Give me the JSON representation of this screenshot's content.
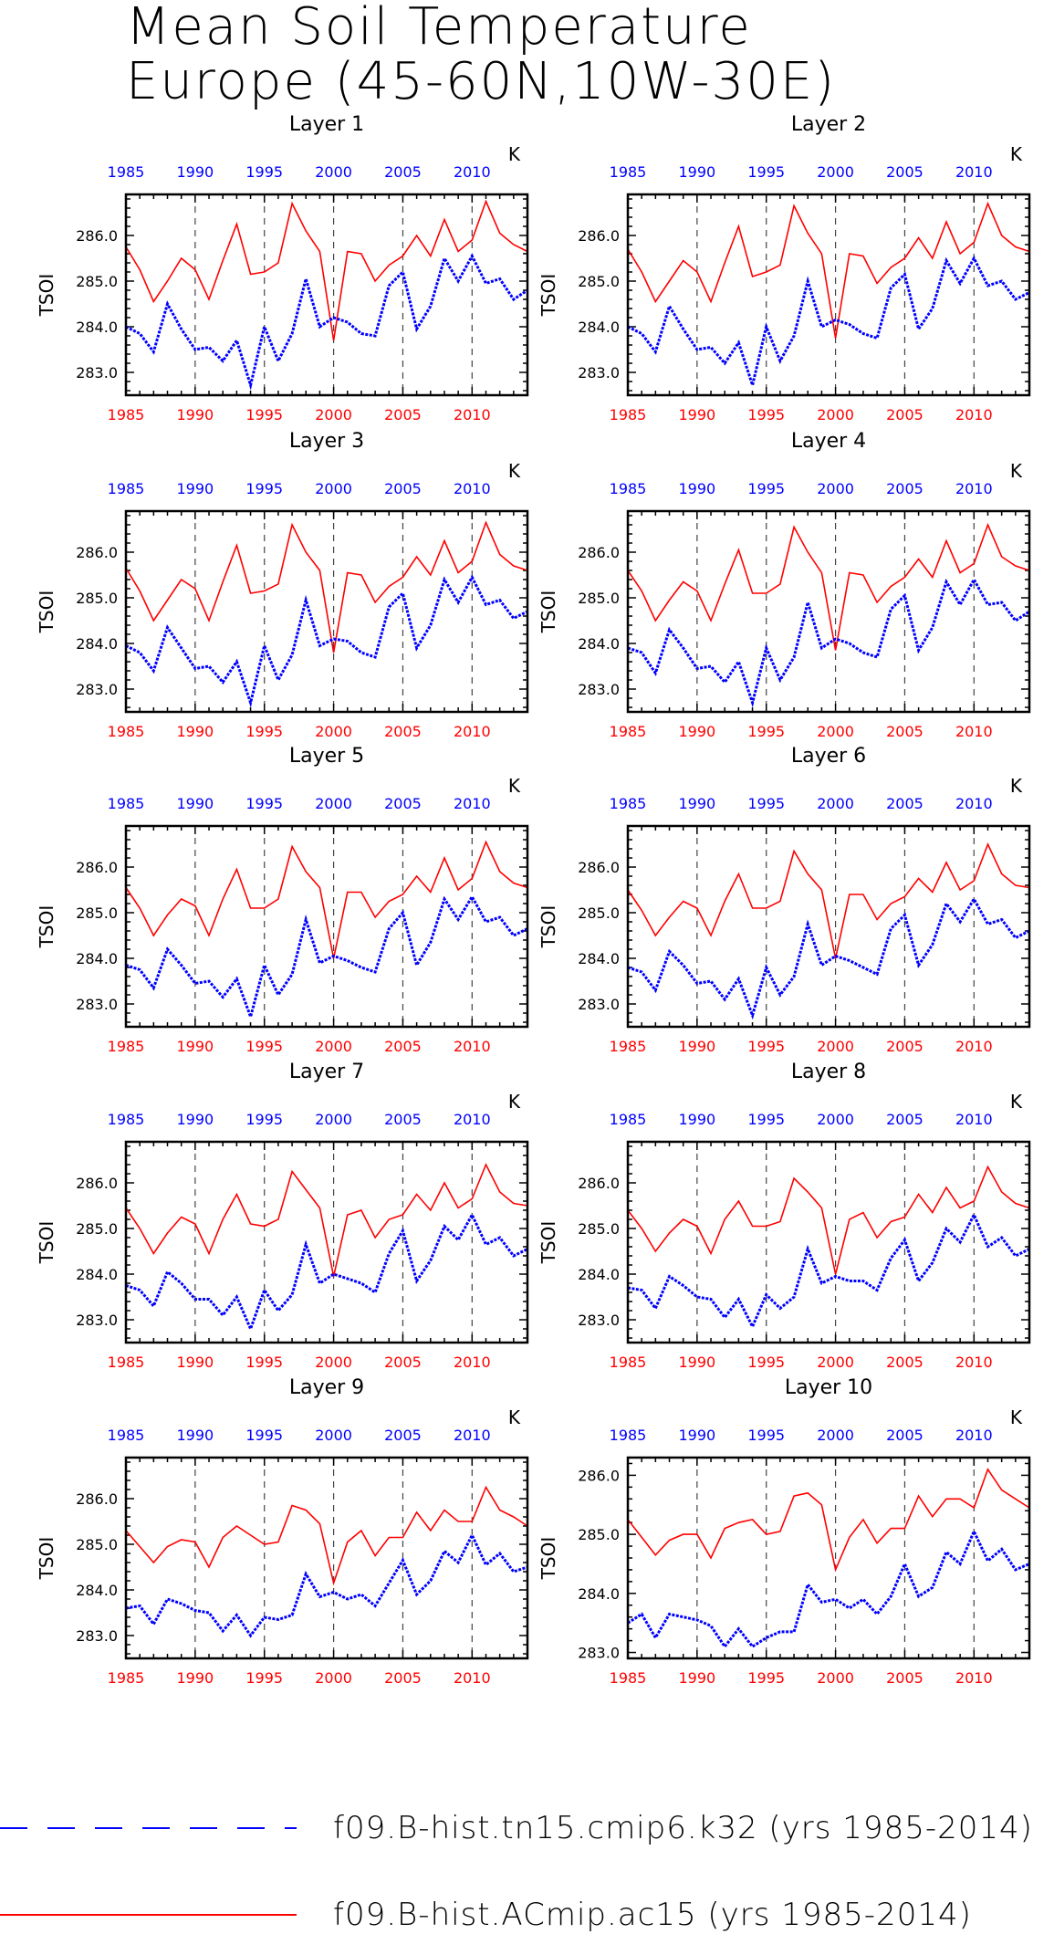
{
  "title_lines": [
    "Mean Soil Temperature",
    "Europe (45-60N,10W-30E)"
  ],
  "colors": {
    "series1": "#0000ff",
    "series2": "#ff0000"
  },
  "chart_data": [
    {
      "type": "line",
      "title": "Layer 1",
      "ylabel": "TSOI",
      "units": "K",
      "xlim": [
        1985,
        2014
      ],
      "ylim": [
        282.5,
        286.9
      ],
      "xticks": [
        1985,
        1990,
        1995,
        2000,
        2005,
        2010
      ],
      "yticks": [
        283.0,
        284.0,
        285.0,
        286.0
      ],
      "series": [
        {
          "name": "f09.B-hist.tn15.cmip6.k32 (yrs 1985-2014)",
          "values": [
            284.0,
            283.85,
            283.45,
            284.5,
            283.95,
            283.5,
            283.55,
            283.25,
            283.7,
            282.72,
            284.0,
            283.25,
            283.85,
            285.05,
            284.0,
            284.2,
            284.1,
            283.85,
            283.8,
            284.9,
            285.2,
            283.95,
            284.45,
            285.5,
            285.0,
            285.55,
            284.95,
            285.05,
            284.6,
            284.8
          ]
        },
        {
          "name": "f09.B-hist.ACmip.ac15 (yrs 1985-2014)",
          "values": [
            285.75,
            285.25,
            284.55,
            285.0,
            285.5,
            285.25,
            284.6,
            285.45,
            286.25,
            285.15,
            285.2,
            285.4,
            286.7,
            286.1,
            285.65,
            283.7,
            285.65,
            285.6,
            285.0,
            285.35,
            285.55,
            286.0,
            285.55,
            286.35,
            285.65,
            285.9,
            286.75,
            286.05,
            285.8,
            285.65
          ]
        }
      ]
    },
    {
      "type": "line",
      "title": "Layer 2",
      "ylabel": "TSOI",
      "units": "K",
      "xlim": [
        1985,
        2014
      ],
      "ylim": [
        282.5,
        286.9
      ],
      "xticks": [
        1985,
        1990,
        1995,
        2000,
        2005,
        2010
      ],
      "yticks": [
        283.0,
        284.0,
        285.0,
        286.0
      ],
      "series": [
        {
          "name": "f09.B-hist.tn15.cmip6.k32 (yrs 1985-2014)",
          "values": [
            284.0,
            283.85,
            283.45,
            284.45,
            283.95,
            283.5,
            283.55,
            283.2,
            283.65,
            282.72,
            284.0,
            283.25,
            283.8,
            285.0,
            284.0,
            284.15,
            284.05,
            283.85,
            283.75,
            284.85,
            285.15,
            283.95,
            284.4,
            285.45,
            284.95,
            285.5,
            284.9,
            285.0,
            284.6,
            284.75
          ]
        },
        {
          "name": "f09.B-hist.ACmip.ac15 (yrs 1985-2014)",
          "values": [
            285.7,
            285.2,
            284.55,
            285.0,
            285.45,
            285.2,
            284.55,
            285.4,
            286.2,
            285.1,
            285.2,
            285.35,
            286.65,
            286.05,
            285.6,
            283.75,
            285.6,
            285.55,
            284.95,
            285.3,
            285.5,
            285.95,
            285.5,
            286.3,
            285.6,
            285.85,
            286.7,
            286.0,
            285.75,
            285.65
          ]
        }
      ]
    },
    {
      "type": "line",
      "title": "Layer 3",
      "ylabel": "TSOI",
      "units": "K",
      "xlim": [
        1985,
        2014
      ],
      "ylim": [
        282.5,
        286.9
      ],
      "xticks": [
        1985,
        1990,
        1995,
        2000,
        2005,
        2010
      ],
      "yticks": [
        283.0,
        284.0,
        285.0,
        286.0
      ],
      "series": [
        {
          "name": "f09.B-hist.tn15.cmip6.k32 (yrs 1985-2014)",
          "values": [
            283.95,
            283.8,
            283.4,
            284.35,
            283.9,
            283.45,
            283.5,
            283.15,
            283.6,
            282.7,
            283.95,
            283.2,
            283.75,
            284.95,
            283.95,
            284.1,
            284.05,
            283.8,
            283.7,
            284.8,
            285.1,
            283.9,
            284.4,
            285.4,
            284.9,
            285.45,
            284.85,
            284.95,
            284.55,
            284.7
          ]
        },
        {
          "name": "f09.B-hist.ACmip.ac15 (yrs 1985-2014)",
          "values": [
            285.65,
            285.15,
            284.5,
            284.95,
            285.4,
            285.2,
            284.5,
            285.35,
            286.15,
            285.1,
            285.15,
            285.3,
            286.6,
            286.0,
            285.6,
            283.8,
            285.55,
            285.5,
            284.9,
            285.25,
            285.45,
            285.9,
            285.5,
            286.25,
            285.55,
            285.8,
            286.65,
            285.95,
            285.7,
            285.6
          ]
        }
      ]
    },
    {
      "type": "line",
      "title": "Layer 4",
      "ylabel": "TSOI",
      "units": "K",
      "xlim": [
        1985,
        2014
      ],
      "ylim": [
        282.5,
        286.9
      ],
      "xticks": [
        1985,
        1990,
        1995,
        2000,
        2005,
        2010
      ],
      "yticks": [
        283.0,
        284.0,
        285.0,
        286.0
      ],
      "series": [
        {
          "name": "f09.B-hist.tn15.cmip6.k32 (yrs 1985-2014)",
          "values": [
            283.9,
            283.8,
            283.35,
            284.3,
            283.9,
            283.45,
            283.5,
            283.15,
            283.6,
            282.7,
            283.9,
            283.2,
            283.7,
            284.9,
            283.9,
            284.1,
            284.0,
            283.8,
            283.7,
            284.75,
            285.05,
            283.85,
            284.35,
            285.35,
            284.85,
            285.4,
            284.85,
            284.9,
            284.5,
            284.7
          ]
        },
        {
          "name": "f09.B-hist.ACmip.ac15 (yrs 1985-2014)",
          "values": [
            285.6,
            285.15,
            284.5,
            284.95,
            285.35,
            285.15,
            284.5,
            285.3,
            286.05,
            285.1,
            285.1,
            285.3,
            286.55,
            286.0,
            285.55,
            283.85,
            285.55,
            285.5,
            284.9,
            285.25,
            285.45,
            285.85,
            285.45,
            286.25,
            285.55,
            285.75,
            286.6,
            285.9,
            285.7,
            285.6
          ]
        }
      ]
    },
    {
      "type": "line",
      "title": "Layer 5",
      "ylabel": "TSOI",
      "units": "K",
      "xlim": [
        1985,
        2014
      ],
      "ylim": [
        282.5,
        286.9
      ],
      "xticks": [
        1985,
        1990,
        1995,
        2000,
        2005,
        2010
      ],
      "yticks": [
        283.0,
        284.0,
        285.0,
        286.0
      ],
      "series": [
        {
          "name": "f09.B-hist.tn15.cmip6.k32 (yrs 1985-2014)",
          "values": [
            283.85,
            283.75,
            283.35,
            284.2,
            283.85,
            283.45,
            283.5,
            283.15,
            283.55,
            282.72,
            283.85,
            283.2,
            283.65,
            284.85,
            283.9,
            284.05,
            283.95,
            283.8,
            283.7,
            284.65,
            285.0,
            283.85,
            284.35,
            285.3,
            284.85,
            285.35,
            284.8,
            284.9,
            284.5,
            284.65
          ]
        },
        {
          "name": "f09.B-hist.ACmip.ac15 (yrs 1985-2014)",
          "values": [
            285.55,
            285.1,
            284.5,
            284.95,
            285.3,
            285.15,
            284.5,
            285.3,
            285.95,
            285.1,
            285.1,
            285.3,
            286.45,
            285.9,
            285.55,
            284.0,
            285.45,
            285.45,
            284.9,
            285.25,
            285.4,
            285.8,
            285.45,
            286.2,
            285.5,
            285.75,
            286.55,
            285.9,
            285.65,
            285.55
          ]
        }
      ]
    },
    {
      "type": "line",
      "title": "Layer 6",
      "ylabel": "TSOI",
      "units": "K",
      "xlim": [
        1985,
        2014
      ],
      "ylim": [
        282.5,
        286.9
      ],
      "xticks": [
        1985,
        1990,
        1995,
        2000,
        2005,
        2010
      ],
      "yticks": [
        283.0,
        284.0,
        285.0,
        286.0
      ],
      "series": [
        {
          "name": "f09.B-hist.tn15.cmip6.k32 (yrs 1985-2014)",
          "values": [
            283.8,
            283.7,
            283.3,
            284.15,
            283.85,
            283.45,
            283.5,
            283.1,
            283.55,
            282.75,
            283.8,
            283.2,
            283.6,
            284.75,
            283.85,
            284.05,
            283.95,
            283.8,
            283.65,
            284.65,
            284.95,
            283.85,
            284.3,
            285.2,
            284.8,
            285.3,
            284.75,
            284.85,
            284.45,
            284.6
          ]
        },
        {
          "name": "f09.B-hist.ACmip.ac15 (yrs 1985-2014)",
          "values": [
            285.5,
            285.05,
            284.5,
            284.9,
            285.25,
            285.1,
            284.5,
            285.25,
            285.85,
            285.1,
            285.1,
            285.25,
            286.35,
            285.85,
            285.5,
            284.0,
            285.4,
            285.4,
            284.85,
            285.2,
            285.35,
            285.75,
            285.45,
            286.1,
            285.5,
            285.7,
            286.5,
            285.85,
            285.6,
            285.55
          ]
        }
      ]
    },
    {
      "type": "line",
      "title": "Layer 7",
      "ylabel": "TSOI",
      "units": "K",
      "xlim": [
        1985,
        2014
      ],
      "ylim": [
        282.5,
        286.9
      ],
      "xticks": [
        1985,
        1990,
        1995,
        2000,
        2005,
        2010
      ],
      "yticks": [
        283.0,
        284.0,
        285.0,
        286.0
      ],
      "series": [
        {
          "name": "f09.B-hist.tn15.cmip6.k32 (yrs 1985-2014)",
          "values": [
            283.75,
            283.65,
            283.3,
            284.05,
            283.8,
            283.45,
            283.45,
            283.1,
            283.5,
            282.8,
            283.65,
            283.2,
            283.55,
            284.65,
            283.8,
            284.0,
            283.9,
            283.8,
            283.6,
            284.45,
            284.95,
            283.85,
            284.3,
            285.05,
            284.75,
            285.3,
            284.65,
            284.8,
            284.4,
            284.55
          ]
        },
        {
          "name": "f09.B-hist.ACmip.ac15 (yrs 1985-2014)",
          "values": [
            285.45,
            285.0,
            284.45,
            284.9,
            285.25,
            285.1,
            284.45,
            285.2,
            285.75,
            285.1,
            285.05,
            285.2,
            286.25,
            285.85,
            285.45,
            283.95,
            285.3,
            285.4,
            284.8,
            285.2,
            285.3,
            285.75,
            285.4,
            286.0,
            285.45,
            285.65,
            286.4,
            285.8,
            285.55,
            285.5
          ]
        }
      ]
    },
    {
      "type": "line",
      "title": "Layer 8",
      "ylabel": "TSOI",
      "units": "K",
      "xlim": [
        1985,
        2014
      ],
      "ylim": [
        282.5,
        286.9
      ],
      "xticks": [
        1985,
        1990,
        1995,
        2000,
        2005,
        2010
      ],
      "yticks": [
        283.0,
        284.0,
        285.0,
        286.0
      ],
      "series": [
        {
          "name": "f09.B-hist.tn15.cmip6.k32 (yrs 1985-2014)",
          "values": [
            283.7,
            283.65,
            283.25,
            283.95,
            283.75,
            283.5,
            283.45,
            283.05,
            283.45,
            282.85,
            283.55,
            283.25,
            283.5,
            284.55,
            283.8,
            283.95,
            283.85,
            283.85,
            283.65,
            284.35,
            284.75,
            283.85,
            284.25,
            285.0,
            284.7,
            285.3,
            284.6,
            284.8,
            284.4,
            284.55
          ]
        },
        {
          "name": "f09.B-hist.ACmip.ac15 (yrs 1985-2014)",
          "values": [
            285.4,
            285.0,
            284.5,
            284.9,
            285.2,
            285.05,
            284.45,
            285.2,
            285.6,
            285.05,
            285.05,
            285.15,
            286.1,
            285.8,
            285.45,
            284.0,
            285.2,
            285.35,
            284.8,
            285.15,
            285.25,
            285.75,
            285.35,
            285.9,
            285.45,
            285.6,
            286.35,
            285.8,
            285.55,
            285.45
          ]
        }
      ]
    },
    {
      "type": "line",
      "title": "Layer 9",
      "ylabel": "TSOI",
      "units": "K",
      "xlim": [
        1985,
        2014
      ],
      "ylim": [
        282.5,
        286.9
      ],
      "xticks": [
        1985,
        1990,
        1995,
        2000,
        2005,
        2010
      ],
      "yticks": [
        283.0,
        284.0,
        285.0,
        286.0
      ],
      "series": [
        {
          "name": "f09.B-hist.tn15.cmip6.k32 (yrs 1985-2014)",
          "values": [
            283.6,
            283.65,
            283.25,
            283.8,
            283.7,
            283.55,
            283.5,
            283.1,
            283.45,
            283.0,
            283.4,
            283.35,
            283.45,
            284.35,
            283.85,
            283.95,
            283.8,
            283.9,
            283.65,
            284.15,
            284.65,
            283.9,
            284.2,
            284.85,
            284.6,
            285.2,
            284.55,
            284.8,
            284.4,
            284.5
          ]
        },
        {
          "name": "f09.B-hist.ACmip.ac15 (yrs 1985-2014)",
          "values": [
            285.3,
            284.95,
            284.6,
            284.95,
            285.1,
            285.05,
            284.5,
            285.15,
            285.4,
            285.2,
            285.0,
            285.05,
            285.85,
            285.75,
            285.45,
            284.15,
            285.05,
            285.3,
            284.75,
            285.15,
            285.15,
            285.7,
            285.3,
            285.75,
            285.5,
            285.5,
            286.25,
            285.75,
            285.6,
            285.4
          ]
        }
      ]
    },
    {
      "type": "line",
      "title": "Layer 10",
      "ylabel": "TSOI",
      "units": "K",
      "xlim": [
        1985,
        2014
      ],
      "ylim": [
        282.9,
        286.3
      ],
      "xticks": [
        1985,
        1990,
        1995,
        2000,
        2005,
        2010
      ],
      "yticks": [
        283.0,
        284.0,
        285.0,
        286.0
      ],
      "series": [
        {
          "name": "f09.B-hist.tn15.cmip6.k32 (yrs 1985-2014)",
          "values": [
            283.5,
            283.65,
            283.25,
            283.65,
            283.6,
            283.55,
            283.45,
            283.1,
            283.4,
            283.1,
            283.25,
            283.35,
            283.35,
            284.15,
            283.85,
            283.9,
            283.75,
            283.9,
            283.65,
            283.95,
            284.5,
            283.95,
            284.1,
            284.7,
            284.5,
            285.05,
            284.55,
            284.75,
            284.4,
            284.5
          ]
        },
        {
          "name": "f09.B-hist.ACmip.ac15 (yrs 1985-2014)",
          "values": [
            285.25,
            284.95,
            284.65,
            284.9,
            285.0,
            285.0,
            284.6,
            285.1,
            285.2,
            285.25,
            285.0,
            285.05,
            285.65,
            285.7,
            285.5,
            284.4,
            284.95,
            285.25,
            284.85,
            285.1,
            285.1,
            285.65,
            285.3,
            285.6,
            285.6,
            285.45,
            286.1,
            285.75,
            285.6,
            285.45
          ]
        }
      ]
    }
  ],
  "legend": [
    {
      "label": "f09.B-hist.tn15.cmip6.k32 (yrs 1985-2014)",
      "color": "#0000ff",
      "style": "dashed"
    },
    {
      "label": "f09.B-hist.ACmip.ac15 (yrs 1985-2014)",
      "color": "#ff0000",
      "style": "solid"
    }
  ]
}
